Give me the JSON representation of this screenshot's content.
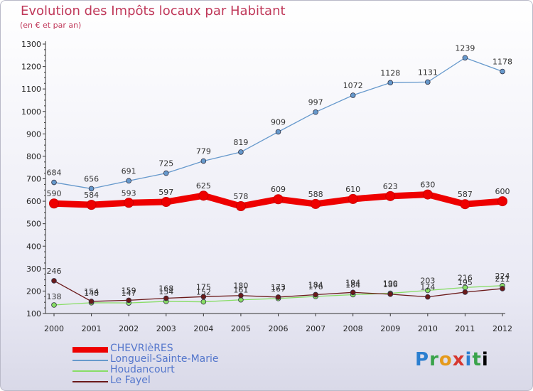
{
  "chart_data": {
    "type": "line",
    "title": "Evolution des Impôts locaux par Habitant",
    "subtitle": "(en € et par an)",
    "x": [
      "2000",
      "2001",
      "2002",
      "2003",
      "2004",
      "2005",
      "2006",
      "2007",
      "2008",
      "2009",
      "2010",
      "2011",
      "2012"
    ],
    "ylim": [
      100,
      1300
    ],
    "yticks": [
      100,
      200,
      300,
      400,
      500,
      600,
      700,
      800,
      900,
      1000,
      1100,
      1200,
      1300
    ],
    "grid": false,
    "legend_position": "bottom-left",
    "series": [
      {
        "name": "CHEVRIèRES",
        "color": "#ee0000",
        "values": [
          590,
          584,
          593,
          597,
          625,
          578,
          609,
          588,
          610,
          623,
          630,
          587,
          600
        ]
      },
      {
        "name": "Longueil-Sainte-Marie",
        "color": "#6699cc",
        "values": [
          684,
          656,
          691,
          725,
          779,
          819,
          909,
          997,
          1072,
          1128,
          1131,
          1239,
          1178
        ]
      },
      {
        "name": "Houdancourt",
        "color": "#88dd66",
        "values": [
          138,
          148,
          147,
          154,
          152,
          161,
          167,
          176,
          184,
          190,
          203,
          216,
          224
        ]
      },
      {
        "name": "Le Fayel",
        "color": "#6b1a1a",
        "values": [
          246,
          154,
          159,
          168,
          175,
          180,
          173,
          184,
          194,
          186,
          174,
          195,
          211
        ]
      }
    ]
  },
  "logo": {
    "letters": [
      "P",
      "r",
      "o",
      "x",
      "i",
      "t",
      "i"
    ]
  }
}
